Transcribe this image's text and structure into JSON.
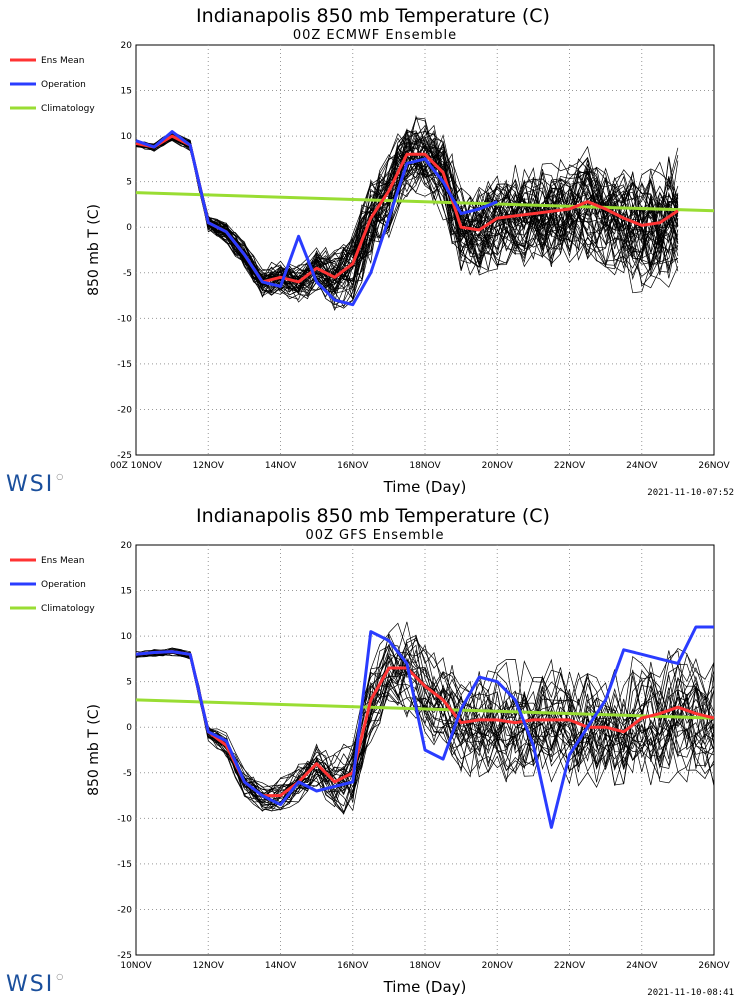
{
  "chart_data": [
    {
      "type": "line",
      "title": "Indianapolis 850 mb Temperature (C)",
      "subtitle": "00Z ECMWF Ensemble",
      "xlabel": "Time (Day)",
      "ylabel": "850 mb T (C)",
      "ylim": [
        -25,
        20
      ],
      "xlim": [
        10,
        26
      ],
      "x_ticks": [
        "00Z 10NOV",
        "12NOV",
        "14NOV",
        "16NOV",
        "18NOV",
        "20NOV",
        "22NOV",
        "24NOV",
        "26NOV"
      ],
      "y_ticks": [
        "20",
        "15",
        "10",
        "5",
        "0",
        "-5",
        "-10",
        "-15",
        "-20",
        "-25"
      ],
      "grid": true,
      "legend_position": "left",
      "logo": "WSI",
      "timestamp": "2021-11-10-07:52",
      "colors": {
        "ens_mean": "#ff3333",
        "operation": "#2a3cff",
        "climatology": "#99dd33",
        "members": "#000000"
      },
      "member_count": 51,
      "member_end": 25,
      "member_spread": [
        [
          10,
          0.4
        ],
        [
          11.5,
          0.6
        ],
        [
          12,
          1.0
        ],
        [
          13,
          1.5
        ],
        [
          14,
          2.0
        ],
        [
          15,
          2.5
        ],
        [
          16,
          4.5
        ],
        [
          17,
          5.0
        ],
        [
          18,
          4.5
        ],
        [
          19,
          5.0
        ],
        [
          20,
          5.5
        ],
        [
          22,
          6.0
        ],
        [
          24,
          7.0
        ],
        [
          25,
          7.5
        ]
      ],
      "series": [
        {
          "name": "Ens Mean",
          "x": [
            10,
            10.5,
            11,
            11.5,
            12,
            12.5,
            13,
            13.5,
            14,
            14.5,
            15,
            15.5,
            16,
            16.5,
            17,
            17.5,
            18,
            18.5,
            19,
            19.5,
            20,
            21,
            22,
            22.5,
            23,
            23.5,
            24,
            24.5,
            25
          ],
          "y": [
            9.2,
            8.8,
            10,
            9,
            0.5,
            -0.5,
            -3,
            -6,
            -5.5,
            -6,
            -4.5,
            -5.5,
            -4,
            1,
            4,
            8,
            8,
            6,
            0,
            -0.3,
            1,
            1.5,
            2,
            2.8,
            2,
            1,
            0.2,
            0.5,
            1.8
          ]
        },
        {
          "name": "Operation",
          "x": [
            10,
            10.5,
            11,
            11.5,
            12,
            12.5,
            13,
            13.5,
            14,
            14.5,
            15,
            15.5,
            16,
            16.5,
            17,
            17.5,
            18,
            18.5,
            19,
            19.5,
            20
          ],
          "y": [
            9.5,
            8.8,
            10.5,
            9,
            0.5,
            -0.5,
            -3,
            -6,
            -6.5,
            -1,
            -6,
            -8,
            -8.5,
            -5,
            1,
            7,
            7.5,
            5,
            1.5,
            2,
            2.8
          ]
        },
        {
          "name": "Climatology",
          "x": [
            10,
            26
          ],
          "y": [
            3.8,
            1.8
          ]
        }
      ]
    },
    {
      "type": "line",
      "title": "Indianapolis 850 mb Temperature (C)",
      "subtitle": "00Z GFS Ensemble",
      "xlabel": "Time (Day)",
      "ylabel": "850 mb T (C)",
      "ylim": [
        -25,
        20
      ],
      "xlim": [
        10,
        26
      ],
      "x_ticks": [
        "10NOV",
        "12NOV",
        "14NOV",
        "16NOV",
        "18NOV",
        "20NOV",
        "22NOV",
        "24NOV",
        "26NOV"
      ],
      "y_ticks": [
        "20",
        "15",
        "10",
        "5",
        "0",
        "-5",
        "-10",
        "-15",
        "-20",
        "-25"
      ],
      "grid": true,
      "legend_position": "left",
      "logo": "WSI",
      "timestamp": "2021-11-10-08:41",
      "colors": {
        "ens_mean": "#ff3333",
        "operation": "#2a3cff",
        "climatology": "#99dd33",
        "members": "#000000"
      },
      "member_count": 31,
      "member_end": 26,
      "member_spread": [
        [
          10,
          0.4
        ],
        [
          11.5,
          0.5
        ],
        [
          12,
          1.0
        ],
        [
          13,
          1.5
        ],
        [
          14,
          1.8
        ],
        [
          15,
          2.5
        ],
        [
          16,
          4.0
        ],
        [
          17,
          4.5
        ],
        [
          18,
          5.0
        ],
        [
          19,
          5.5
        ],
        [
          20,
          6.0
        ],
        [
          22,
          6.5
        ],
        [
          24,
          7.0
        ],
        [
          26,
          7.5
        ]
      ],
      "series": [
        {
          "name": "Ens Mean",
          "x": [
            10,
            10.5,
            11,
            11.5,
            12,
            12.5,
            13,
            13.5,
            14,
            14.5,
            15,
            15.5,
            16,
            16.5,
            17,
            17.5,
            18,
            18.5,
            19,
            19.5,
            20,
            20.5,
            21,
            22,
            22.5,
            23,
            23.5,
            24,
            24.5,
            25,
            25.5,
            26
          ],
          "y": [
            8,
            8.2,
            8.3,
            8,
            -0.5,
            -2,
            -6,
            -7.5,
            -7.5,
            -6,
            -4,
            -6,
            -5,
            3,
            6.5,
            6.5,
            4.5,
            3,
            0.5,
            0.8,
            0.8,
            0.5,
            0.8,
            0.8,
            0,
            0,
            -0.5,
            1,
            1.5,
            2.2,
            1.5,
            1
          ]
        },
        {
          "name": "Operation",
          "x": [
            10,
            10.5,
            11,
            11.5,
            12,
            12.5,
            13,
            13.5,
            14,
            14.5,
            15,
            15.5,
            16,
            16.5,
            17,
            17.5,
            18,
            18.5,
            19,
            19.5,
            20,
            20.5,
            21,
            21.5,
            22,
            22.5,
            23,
            23.5,
            24,
            24.5,
            25,
            25.5,
            26
          ],
          "y": [
            8,
            8.2,
            8.3,
            8,
            -0.5,
            -1.5,
            -6,
            -7.5,
            -8.5,
            -6,
            -7,
            -6.5,
            -6,
            10.5,
            9.5,
            7,
            -2.5,
            -3.5,
            2,
            5.5,
            5,
            3,
            -2,
            -11,
            -3,
            0,
            3,
            8.5,
            8,
            7.5,
            7,
            11,
            11
          ]
        },
        {
          "name": "Climatology",
          "x": [
            10,
            26
          ],
          "y": [
            3.0,
            1.0
          ]
        }
      ]
    }
  ]
}
